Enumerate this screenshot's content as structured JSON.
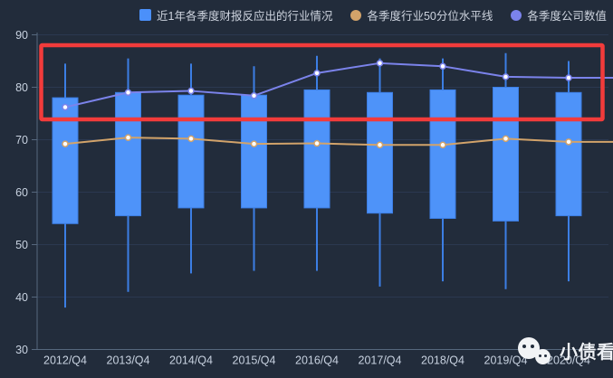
{
  "legend": [
    {
      "label": "近1年各季度财报反应出的行业情况",
      "marker": "square",
      "color": "#4B90FA"
    },
    {
      "label": "各季度行业50分位水平线",
      "marker": "circle",
      "color": "#D2A36A"
    },
    {
      "label": "各季度公司数值",
      "marker": "circle",
      "color": "#7B83EB"
    }
  ],
  "watermark": {
    "text": "小债看市",
    "icon": "wechat-bubbles-icon"
  },
  "ui_colors": {
    "background": "#222C3B",
    "axis_line": "#56677D",
    "grid_line": "#2B3850",
    "tick_label": "#C8D2E0",
    "legend_text": "#CDD3DE",
    "annotation_red": "#F23B3B"
  },
  "chart_data": {
    "type": "boxplot",
    "categories": [
      "2012/Q4",
      "2013/Q4",
      "2014/Q4",
      "2015/Q4",
      "2016/Q4",
      "2017/Q4",
      "2018/Q4",
      "2019/Q4",
      "2020/Q4"
    ],
    "series": [
      {
        "name": "近1年各季度财报反应出的行业情况",
        "type": "candlestick",
        "color": "#4E93F9",
        "border_color": "#3C7EE4",
        "values_low_q1_q3_high": [
          [
            38,
            54,
            78,
            84.5
          ],
          [
            41,
            55.5,
            79,
            85.5
          ],
          [
            44.5,
            57,
            78.5,
            84.5
          ],
          [
            45,
            57,
            78.5,
            84
          ],
          [
            45,
            57,
            79.5,
            86
          ],
          [
            42,
            56,
            79,
            85.5
          ],
          [
            43,
            55,
            79.5,
            85.5
          ],
          [
            41.5,
            54.5,
            80,
            86.5
          ],
          [
            43,
            55.5,
            79,
            85
          ]
        ]
      },
      {
        "name": "各季度行业50分位水平线",
        "type": "line",
        "color": "#D2A36A",
        "values": [
          69.2,
          70.4,
          70.2,
          69.2,
          69.3,
          69,
          69,
          70.2,
          69.6
        ]
      },
      {
        "name": "各季度公司数值",
        "type": "line",
        "color": "#7B83EB",
        "values": [
          76.2,
          79,
          79.3,
          78.4,
          82.7,
          84.6,
          84,
          82,
          81.8
        ]
      }
    ],
    "ylim": [
      30,
      90
    ],
    "yticks": [
      30,
      40,
      50,
      60,
      70,
      80,
      90
    ],
    "grid": true,
    "legend_position": "top",
    "annotation": {
      "shape": "rectangle",
      "color": "#F23B3B",
      "note": "hand-drawn red highlight over the upper band of the chart",
      "y_value_range_approx": [
        73.5,
        88
      ],
      "x_range": "all categories"
    }
  }
}
